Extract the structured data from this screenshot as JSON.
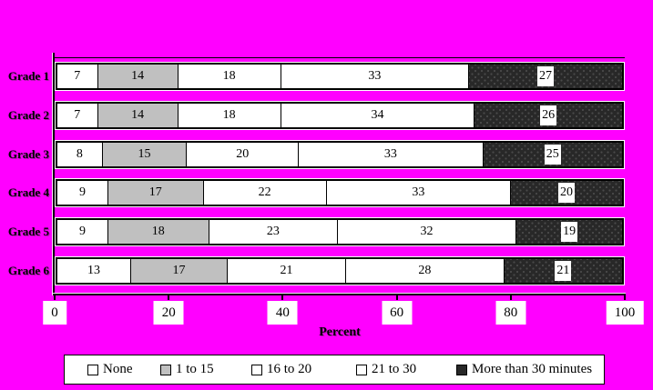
{
  "chart_data": {
    "type": "bar",
    "orientation": "horizontal",
    "stacked": true,
    "title": "",
    "categories": [
      "Grade 1",
      "Grade 2",
      "Grade 3",
      "Grade 4",
      "Grade 5",
      "Grade 6"
    ],
    "series": [
      {
        "name": "None",
        "values": [
          7,
          7,
          8,
          9,
          9,
          13
        ]
      },
      {
        "name": "1 to 15",
        "values": [
          14,
          14,
          15,
          17,
          18,
          17
        ]
      },
      {
        "name": "16 to 20",
        "values": [
          18,
          18,
          20,
          22,
          23,
          21
        ]
      },
      {
        "name": "21 to 30",
        "values": [
          33,
          34,
          33,
          33,
          32,
          28
        ]
      },
      {
        "name": "More than 30 minutes",
        "values": [
          27,
          26,
          25,
          20,
          19,
          21
        ]
      }
    ],
    "xlabel": "Percent",
    "xlim": [
      0,
      100
    ],
    "xticks": [
      0,
      20,
      40,
      60,
      80,
      100
    ],
    "grid": false,
    "legend_position": "bottom"
  },
  "axis": {
    "label": "Percent",
    "ticks": [
      "0",
      "20",
      "40",
      "60",
      "80",
      "100"
    ]
  },
  "legend": {
    "items": [
      {
        "label": "None",
        "fill": "#FFFFFF"
      },
      {
        "label": "1 to 15",
        "fill": "#C0C0C0"
      },
      {
        "label": "16 to 20",
        "fill": "#FFFFFF"
      },
      {
        "label": "21 to 30",
        "fill": "#FFFFFF"
      },
      {
        "label": "More than 30 minutes",
        "fill": "#282828",
        "pattern": "dots"
      }
    ]
  },
  "colors": {
    "background": "#FF00FF",
    "bar_border": "#000000",
    "gray_fill": "#C0C0C0",
    "dark_fill": "#282828",
    "text": "#000000"
  }
}
